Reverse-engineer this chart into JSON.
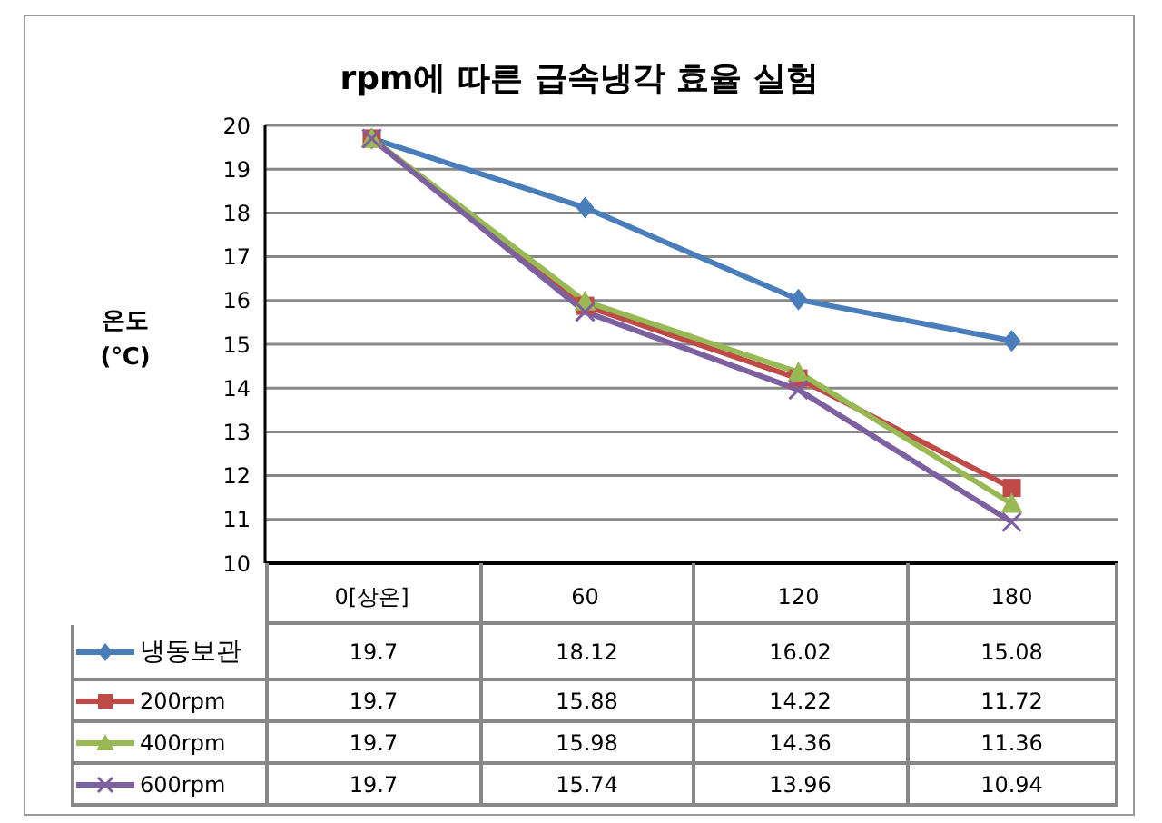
{
  "chart_data": {
    "type": "line",
    "title": "rpm에 따른 급속냉각 효율 실험",
    "ylabel": "온도 (℃)",
    "categories": [
      "0[상온]",
      "60",
      "120",
      "180"
    ],
    "series": [
      {
        "name": "냉동보관",
        "color": "#4a7ebb",
        "marker": "diamond",
        "values": [
          19.7,
          18.12,
          16.02,
          15.08
        ]
      },
      {
        "name": "200rpm",
        "color": "#be4b48",
        "marker": "square",
        "values": [
          19.7,
          15.88,
          14.22,
          11.72
        ]
      },
      {
        "name": "400rpm",
        "color": "#98b954",
        "marker": "triangle",
        "values": [
          19.7,
          15.98,
          14.36,
          11.36
        ]
      },
      {
        "name": "600rpm",
        "color": "#7d60a0",
        "marker": "cross",
        "values": [
          19.7,
          15.74,
          13.96,
          10.94
        ]
      }
    ],
    "ylim": [
      10,
      20
    ],
    "yticks": [
      10,
      11,
      12,
      13,
      14,
      15,
      16,
      17,
      18,
      19,
      20
    ],
    "grid": "y",
    "legend": "bottom",
    "data_labels": true,
    "line_style": "solid"
  }
}
